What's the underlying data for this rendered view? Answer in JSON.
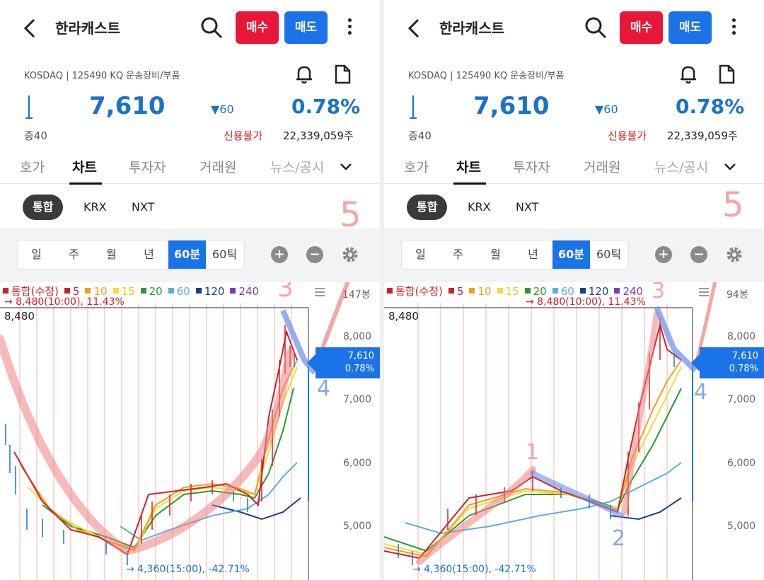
{
  "header": {
    "title": "한라캐스트",
    "buy_label": "매수",
    "sell_label": "매도"
  },
  "stock": {
    "market_info": "KOSDAQ | 125490 KQ 운송장비/부품",
    "price": "7,610",
    "change": "▼60",
    "rate": "0.78%",
    "margin": "증40",
    "credit": "신용불가",
    "volume": "22,339,059주"
  },
  "tabs": [
    "호가",
    "차트",
    "투자자",
    "거래원",
    "뉴스/공시"
  ],
  "active_tab": "차트",
  "markets": [
    "통합",
    "KRX",
    "NXT"
  ],
  "active_market": "통합",
  "periods": [
    "일",
    "주",
    "월",
    "년",
    "60분",
    "60틱"
  ],
  "active_period": "60분",
  "icons": {
    "back": "back-arrow-icon",
    "search": "search-icon",
    "more": "more-vertical-icon",
    "bell": "bell-icon",
    "doc": "document-icon",
    "chevron": "chevron-down-icon",
    "zoom_in": "zoom-in-icon",
    "zoom_out": "zoom-out-icon",
    "settings": "gear-icon",
    "menu": "menu-icon"
  },
  "zoom_in_label": "+",
  "zoom_out_label": "−",
  "legend": [
    {
      "label": "통합(수정)",
      "color": "#d0202a"
    },
    {
      "label": "5",
      "color": "#d0202a"
    },
    {
      "label": "10",
      "color": "#f0a020"
    },
    {
      "label": "15",
      "color": "#f4dc3a"
    },
    {
      "label": "20",
      "color": "#2a9a2a"
    },
    {
      "label": "60",
      "color": "#5ab0d8"
    },
    {
      "label": "120",
      "color": "#1a3f8a"
    },
    {
      "label": "240",
      "color": "#7a3ac8"
    }
  ],
  "chart_info": {
    "high_label": "→ 8,480(10:00), 11.43%",
    "low_label": "→ 4,360(15:00), -42.71%",
    "max_value": "8,480",
    "current_price": "7,610",
    "current_rate": "0.78%"
  },
  "left_panel": {
    "volume_label": "147봉"
  },
  "right_panel": {
    "volume_label": "94봉"
  },
  "annotations": {
    "left": [
      "3",
      "4",
      "5"
    ],
    "right": [
      "1",
      "2",
      "3",
      "4",
      "5"
    ]
  },
  "colors": {
    "up": "#d0202a",
    "down": "#1a73c8",
    "buy": "#e8173a",
    "sell": "#1a73e8"
  },
  "chart_data": {
    "type": "line",
    "y_ticks": [
      8000,
      7000,
      6000,
      5000
    ],
    "ylim": [
      4200,
      8900
    ],
    "high": 8480,
    "low": 4360,
    "current": 7610,
    "moving_averages": [
      "5",
      "10",
      "15",
      "20",
      "60",
      "120",
      "240"
    ]
  }
}
